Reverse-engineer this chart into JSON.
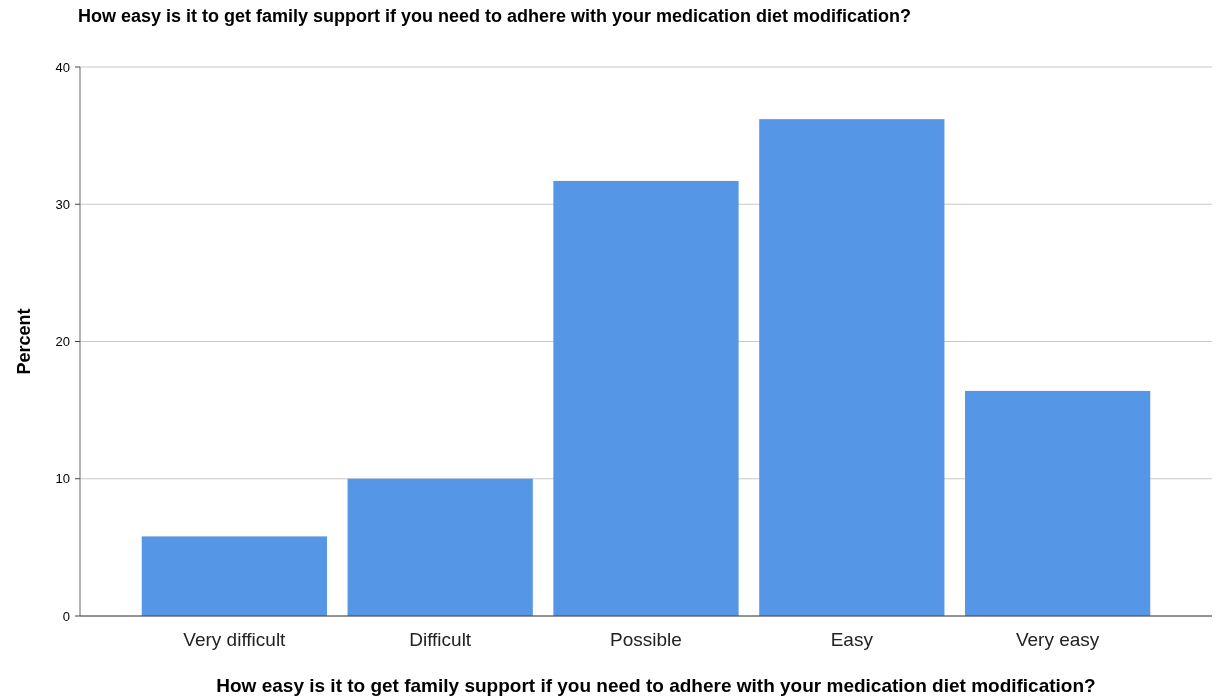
{
  "chart_data": {
    "type": "bar",
    "title": "How easy is it to get family support if you need to adhere with your medication diet modification?",
    "xlabel": "How easy is it to get family support if you need to adhere with your medication diet modification?",
    "ylabel": "Percent",
    "categories": [
      "Very difficult",
      "Difficult",
      "Possible",
      "Easy",
      "Very easy"
    ],
    "values": [
      5.8,
      10.0,
      31.7,
      36.2,
      16.4
    ],
    "color": "#5596e6",
    "ylim": [
      0,
      40
    ],
    "yticks": [
      0,
      10,
      20,
      30,
      40
    ],
    "grid": "y"
  }
}
